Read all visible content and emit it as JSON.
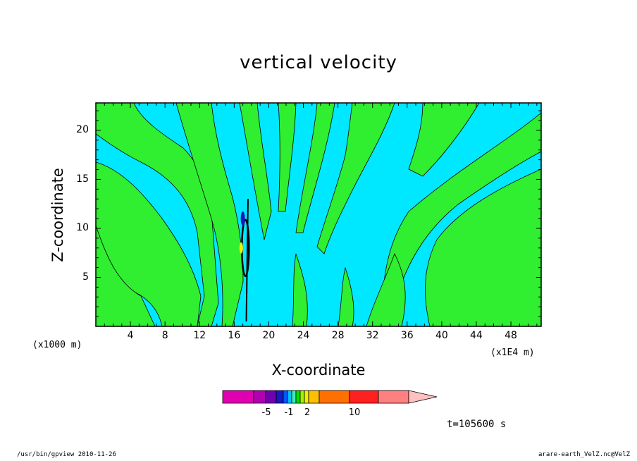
{
  "chart_data": {
    "type": "contour",
    "title": "vertical velocity",
    "xlabel": "X-coordinate",
    "ylabel": "Z-coordinate",
    "x_unit_left": "(x1000 m)",
    "x_unit_right": "(x1E4 m)",
    "x_ticks": [
      4,
      8,
      12,
      16,
      20,
      24,
      28,
      32,
      36,
      40,
      44,
      48
    ],
    "x_tick_labels": [
      "4",
      "8",
      "12",
      "16",
      "20",
      "24",
      "28",
      "32",
      "36",
      "40",
      "44",
      "48"
    ],
    "xlim": [
      0,
      51.5
    ],
    "y_ticks": [
      5,
      10,
      15,
      20
    ],
    "y_tick_labels": [
      "5",
      "10",
      "15",
      "20"
    ],
    "ylim": [
      0,
      22.8
    ],
    "time_label": "t=105600 s",
    "colorbar": {
      "labels": [
        {
          "text": "-5",
          "value": -5
        },
        {
          "text": "-1",
          "value": -1
        },
        {
          "text": "2",
          "value": 2
        },
        {
          "text": "10",
          "value": 10
        }
      ],
      "colors": [
        "#e000b0",
        "#b000b0",
        "#7000b0",
        "#1818c0",
        "#0058ff",
        "#00c0ff",
        "#40e8c0",
        "#00e000",
        "#a0f000",
        "#f0f000",
        "#ffc000",
        "#ff7000",
        "#ff2020",
        "#ff8080",
        "#ffc0c0"
      ]
    },
    "region_colors": {
      "background": "#00e8ff",
      "positive": "#30ee30",
      "strong_negative": "#1818c0",
      "strong_positive": "#f0f000"
    }
  },
  "footer": {
    "left": "/usr/bin/gpview   2010-11-26",
    "right": "arare-earth_VelZ.nc@VelZ"
  }
}
